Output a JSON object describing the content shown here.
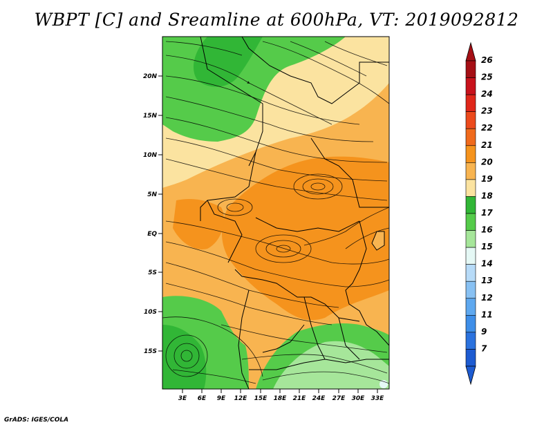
{
  "title": "WBPT [C] and Sreamline at 600hPa, VT: 2019092812",
  "footer": "GrADS: IGES/COLA",
  "map": {
    "lat_labels": [
      "20N",
      "15N",
      "10N",
      "5N",
      "EQ",
      "5S",
      "10S",
      "15S"
    ],
    "lon_labels": [
      "3E",
      "6E",
      "9E",
      "12E",
      "15E",
      "18E",
      "21E",
      "24E",
      "27E",
      "30E",
      "33E"
    ]
  },
  "colorbar": {
    "levels": [
      {
        "label": "26",
        "color": "#a50f15"
      },
      {
        "label": "25",
        "color": "#c8121c"
      },
      {
        "label": "24",
        "color": "#e0271a"
      },
      {
        "label": "23",
        "color": "#ec4a1c"
      },
      {
        "label": "22",
        "color": "#f06a1c"
      },
      {
        "label": "21",
        "color": "#f5931d"
      },
      {
        "label": "20",
        "color": "#f8b450"
      },
      {
        "label": "19",
        "color": "#fbe3a0"
      },
      {
        "label": "18",
        "color": "#31b636"
      },
      {
        "label": "17",
        "color": "#55cb4a"
      },
      {
        "label": "16",
        "color": "#a6e69a"
      },
      {
        "label": "15",
        "color": "#e5f8f5"
      },
      {
        "label": "14",
        "color": "#b7dbf8"
      },
      {
        "label": "13",
        "color": "#88c1f3"
      },
      {
        "label": "12",
        "color": "#5ea8ef"
      },
      {
        "label": "11",
        "color": "#3e8ee8"
      },
      {
        "label": "9",
        "color": "#2b72de"
      },
      {
        "label": "7",
        "color": "#1d5bd1"
      }
    ],
    "top_color": "#a50f15",
    "bottom_color": "#1d5bd1"
  }
}
